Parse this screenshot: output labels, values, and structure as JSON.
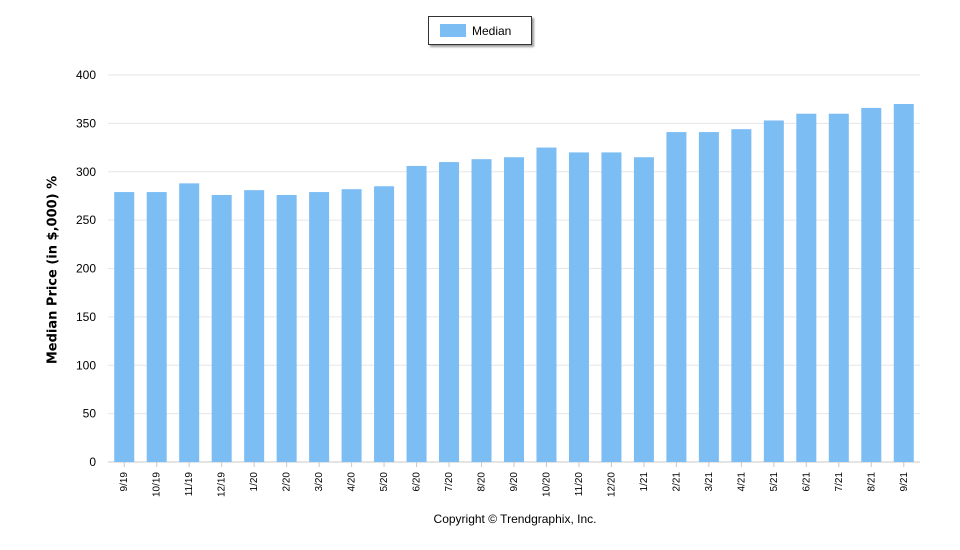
{
  "legend": {
    "label": "Median",
    "color": "#7cbdf4"
  },
  "copyright": "Copyright © Trendgraphix, Inc.",
  "chart_data": {
    "type": "bar",
    "categories": [
      "9/19",
      "10/19",
      "11/19",
      "12/19",
      "1/20",
      "2/20",
      "3/20",
      "4/20",
      "5/20",
      "6/20",
      "7/20",
      "8/20",
      "9/20",
      "10/20",
      "11/20",
      "12/20",
      "1/21",
      "2/21",
      "3/21",
      "4/21",
      "5/21",
      "6/21",
      "7/21",
      "8/21",
      "9/21"
    ],
    "series": [
      {
        "name": "Median",
        "values": [
          279,
          279,
          288,
          276,
          281,
          276,
          279,
          282,
          285,
          306,
          310,
          313,
          315,
          325,
          320,
          320,
          315,
          341,
          341,
          344,
          353,
          360,
          360,
          366,
          370
        ]
      }
    ],
    "title": "",
    "xlabel": "",
    "ylabel": "Median Price (in $,000) %",
    "ylim": [
      0,
      400
    ],
    "yticks": [
      0,
      50,
      100,
      150,
      200,
      250,
      300,
      350,
      400
    ],
    "grid": true,
    "legend_position": "top-center",
    "bar_color": "#7cbdf4"
  }
}
